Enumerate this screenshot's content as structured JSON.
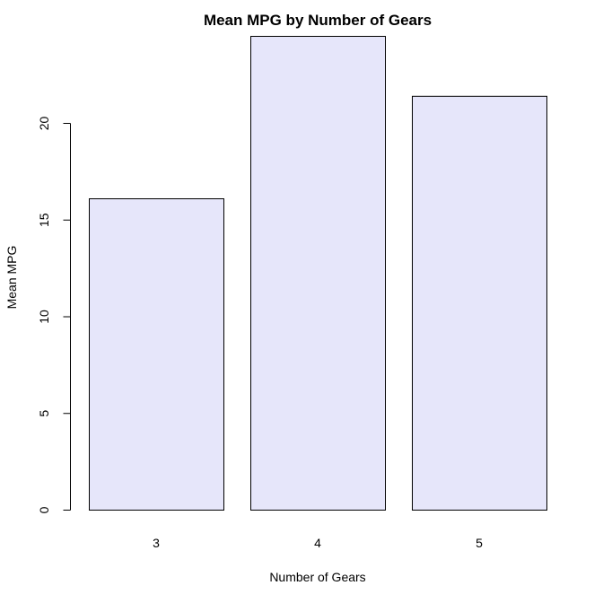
{
  "chart_data": {
    "type": "bar",
    "title": "Mean MPG by Number of Gears",
    "xlabel": "Number of Gears",
    "ylabel": "Mean MPG",
    "categories": [
      "3",
      "4",
      "5"
    ],
    "values": [
      16.1,
      24.5,
      21.4
    ],
    "ylim": [
      0,
      24.5
    ],
    "yticks": [
      0,
      5,
      10,
      15,
      20
    ],
    "bar_color": "#e6e6fa",
    "grid": false,
    "legend": "none"
  }
}
